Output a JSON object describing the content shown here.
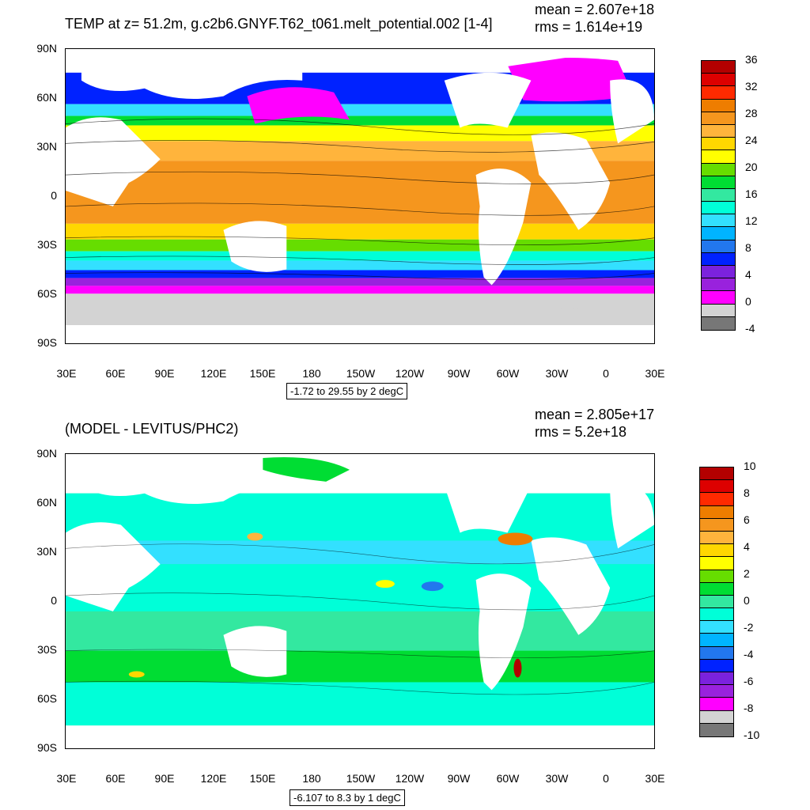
{
  "top": {
    "title": "TEMP at z=  51.2m, g.c2b6.GNYF.T62_t061.melt_potential.002 [1-4]",
    "mean": "mean = 2.607e+18",
    "rms": "rms = 1.614e+19",
    "range": "-1.72 to 29.55 by 2 degC",
    "colorbar_labels": [
      "36",
      "32",
      "28",
      "24",
      "20",
      "16",
      "12",
      "8",
      "4",
      "0",
      "-4"
    ],
    "colorbar_colors": [
      "#b30000",
      "#dd0000",
      "#ff2a00",
      "#ee7d00",
      "#f5961e",
      "#ffb43c",
      "#ffd700",
      "#ffff00",
      "#66dd00",
      "#00dd33",
      "#33e8a0",
      "#00ffd8",
      "#33e0ff",
      "#00b4ff",
      "#2277ee",
      "#0022ff",
      "#7b22dd",
      "#9922dd",
      "#ff00ff",
      "#d3d3d3",
      "#777777"
    ]
  },
  "bottom": {
    "title": "(MODEL - LEVITUS/PHC2)",
    "mean": "mean = 2.805e+17",
    "rms": "rms = 5.2e+18",
    "range": "-6.107 to 8.3 by 1 degC",
    "colorbar_labels": [
      "10",
      "8",
      "6",
      "4",
      "2",
      "0",
      "-2",
      "-4",
      "-6",
      "-8",
      "-10"
    ],
    "colorbar_colors": [
      "#b30000",
      "#dd0000",
      "#ff2a00",
      "#ee7d00",
      "#f5961e",
      "#ffb43c",
      "#ffd700",
      "#ffff00",
      "#66dd00",
      "#00dd33",
      "#33e8a0",
      "#00ffd8",
      "#33e0ff",
      "#00b4ff",
      "#2277ee",
      "#0022ff",
      "#7b22dd",
      "#9922dd",
      "#ff00ff",
      "#d3d3d3",
      "#777777"
    ]
  },
  "axes": {
    "lat_labels": [
      "90N",
      "60N",
      "30N",
      "0",
      "30S",
      "60S",
      "90S"
    ],
    "lon_labels": [
      "30E",
      "60E",
      "90E",
      "120E",
      "150E",
      "180",
      "150W",
      "120W",
      "90W",
      "60W",
      "30W",
      "0",
      "30E"
    ]
  }
}
